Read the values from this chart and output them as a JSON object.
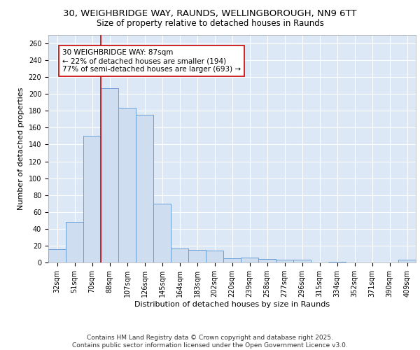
{
  "title_line1": "30, WEIGHBRIDGE WAY, RAUNDS, WELLINGBOROUGH, NN9 6TT",
  "title_line2": "Size of property relative to detached houses in Raunds",
  "xlabel": "Distribution of detached houses by size in Raunds",
  "ylabel": "Number of detached properties",
  "categories": [
    "32sqm",
    "51sqm",
    "70sqm",
    "88sqm",
    "107sqm",
    "126sqm",
    "145sqm",
    "164sqm",
    "183sqm",
    "202sqm",
    "220sqm",
    "239sqm",
    "258sqm",
    "277sqm",
    "296sqm",
    "315sqm",
    "334sqm",
    "352sqm",
    "371sqm",
    "390sqm",
    "409sqm"
  ],
  "values": [
    16,
    48,
    150,
    207,
    184,
    175,
    70,
    17,
    15,
    14,
    5,
    6,
    4,
    3,
    3,
    0,
    1,
    0,
    0,
    0,
    3
  ],
  "bar_color": "#cfddf0",
  "bar_edge_color": "#6a9fd8",
  "vline_x_index": 3,
  "vline_color": "#cc0000",
  "annotation_text": "30 WEIGHBRIDGE WAY: 87sqm\n← 22% of detached houses are smaller (194)\n77% of semi-detached houses are larger (693) →",
  "annotation_box_color": "#ffffff",
  "annotation_box_edge": "#cc0000",
  "ylim": [
    0,
    270
  ],
  "yticks": [
    0,
    20,
    40,
    60,
    80,
    100,
    120,
    140,
    160,
    180,
    200,
    220,
    240,
    260
  ],
  "background_color": "#dce8f5",
  "grid_color": "#ffffff",
  "footer_line1": "Contains HM Land Registry data © Crown copyright and database right 2025.",
  "footer_line2": "Contains public sector information licensed under the Open Government Licence v3.0.",
  "title_fontsize": 9.5,
  "subtitle_fontsize": 8.5,
  "axis_label_fontsize": 8,
  "tick_fontsize": 7,
  "annotation_fontsize": 7.5,
  "footer_fontsize": 6.5
}
